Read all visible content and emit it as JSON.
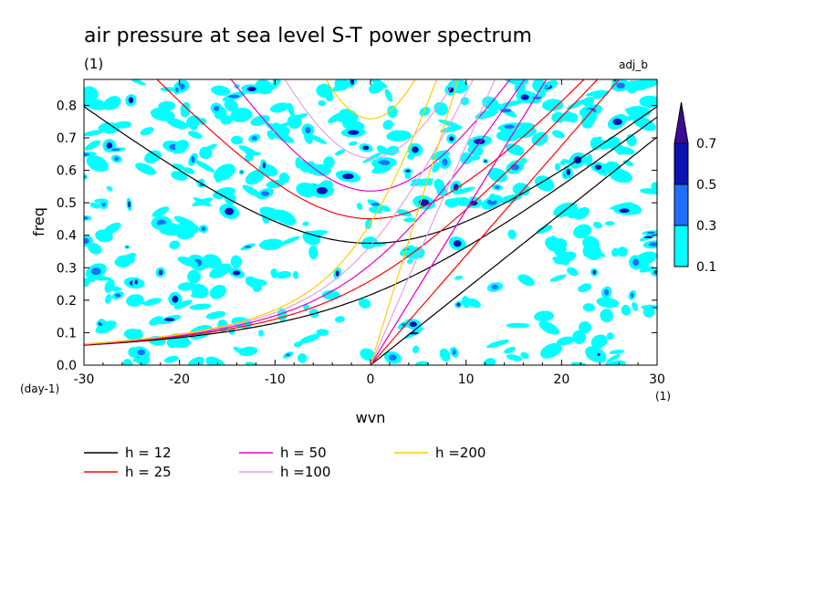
{
  "chart_data": {
    "type": "contour",
    "title": "air pressure at sea level S-T power spectrum",
    "units_label": "(1)",
    "dataset_label": "adj_b",
    "xlabel": "wvn",
    "ylabel": "freq",
    "x_units": "(1)",
    "y_units": "(day-1)",
    "xlim": [
      -30,
      30
    ],
    "ylim": [
      0,
      0.88
    ],
    "x_ticks": [
      -30,
      -20,
      -10,
      0,
      10,
      20,
      30
    ],
    "x_tick_labels": [
      "-30",
      "-20",
      "-10",
      "0",
      "10",
      "20",
      "30"
    ],
    "y_ticks": [
      0,
      0.1,
      0.2,
      0.3,
      0.4,
      0.5,
      0.6,
      0.7,
      0.8
    ],
    "y_tick_labels": [
      "0.0",
      "0.1",
      "0.2",
      "0.3",
      "0.4",
      "0.5",
      "0.6",
      "0.7",
      "0.8"
    ],
    "colorbar": {
      "levels": [
        "0.1",
        "0.3",
        "0.5",
        "0.7"
      ],
      "colors": [
        "#00ffff",
        "#1e6eff",
        "#0a14b4",
        "#3c0a96"
      ]
    },
    "series": [
      {
        "name": "h = 12",
        "h": 12,
        "color": "#000000"
      },
      {
        "name": "h = 25",
        "h": 25,
        "color": "#ff0000"
      },
      {
        "name": "h = 50",
        "h": 50,
        "color": "#e600c8"
      },
      {
        "name": "h =100",
        "h": 100,
        "color": "#e6a0e6"
      },
      {
        "name": "h =200",
        "h": 200,
        "color": "#ffcc00"
      }
    ]
  }
}
